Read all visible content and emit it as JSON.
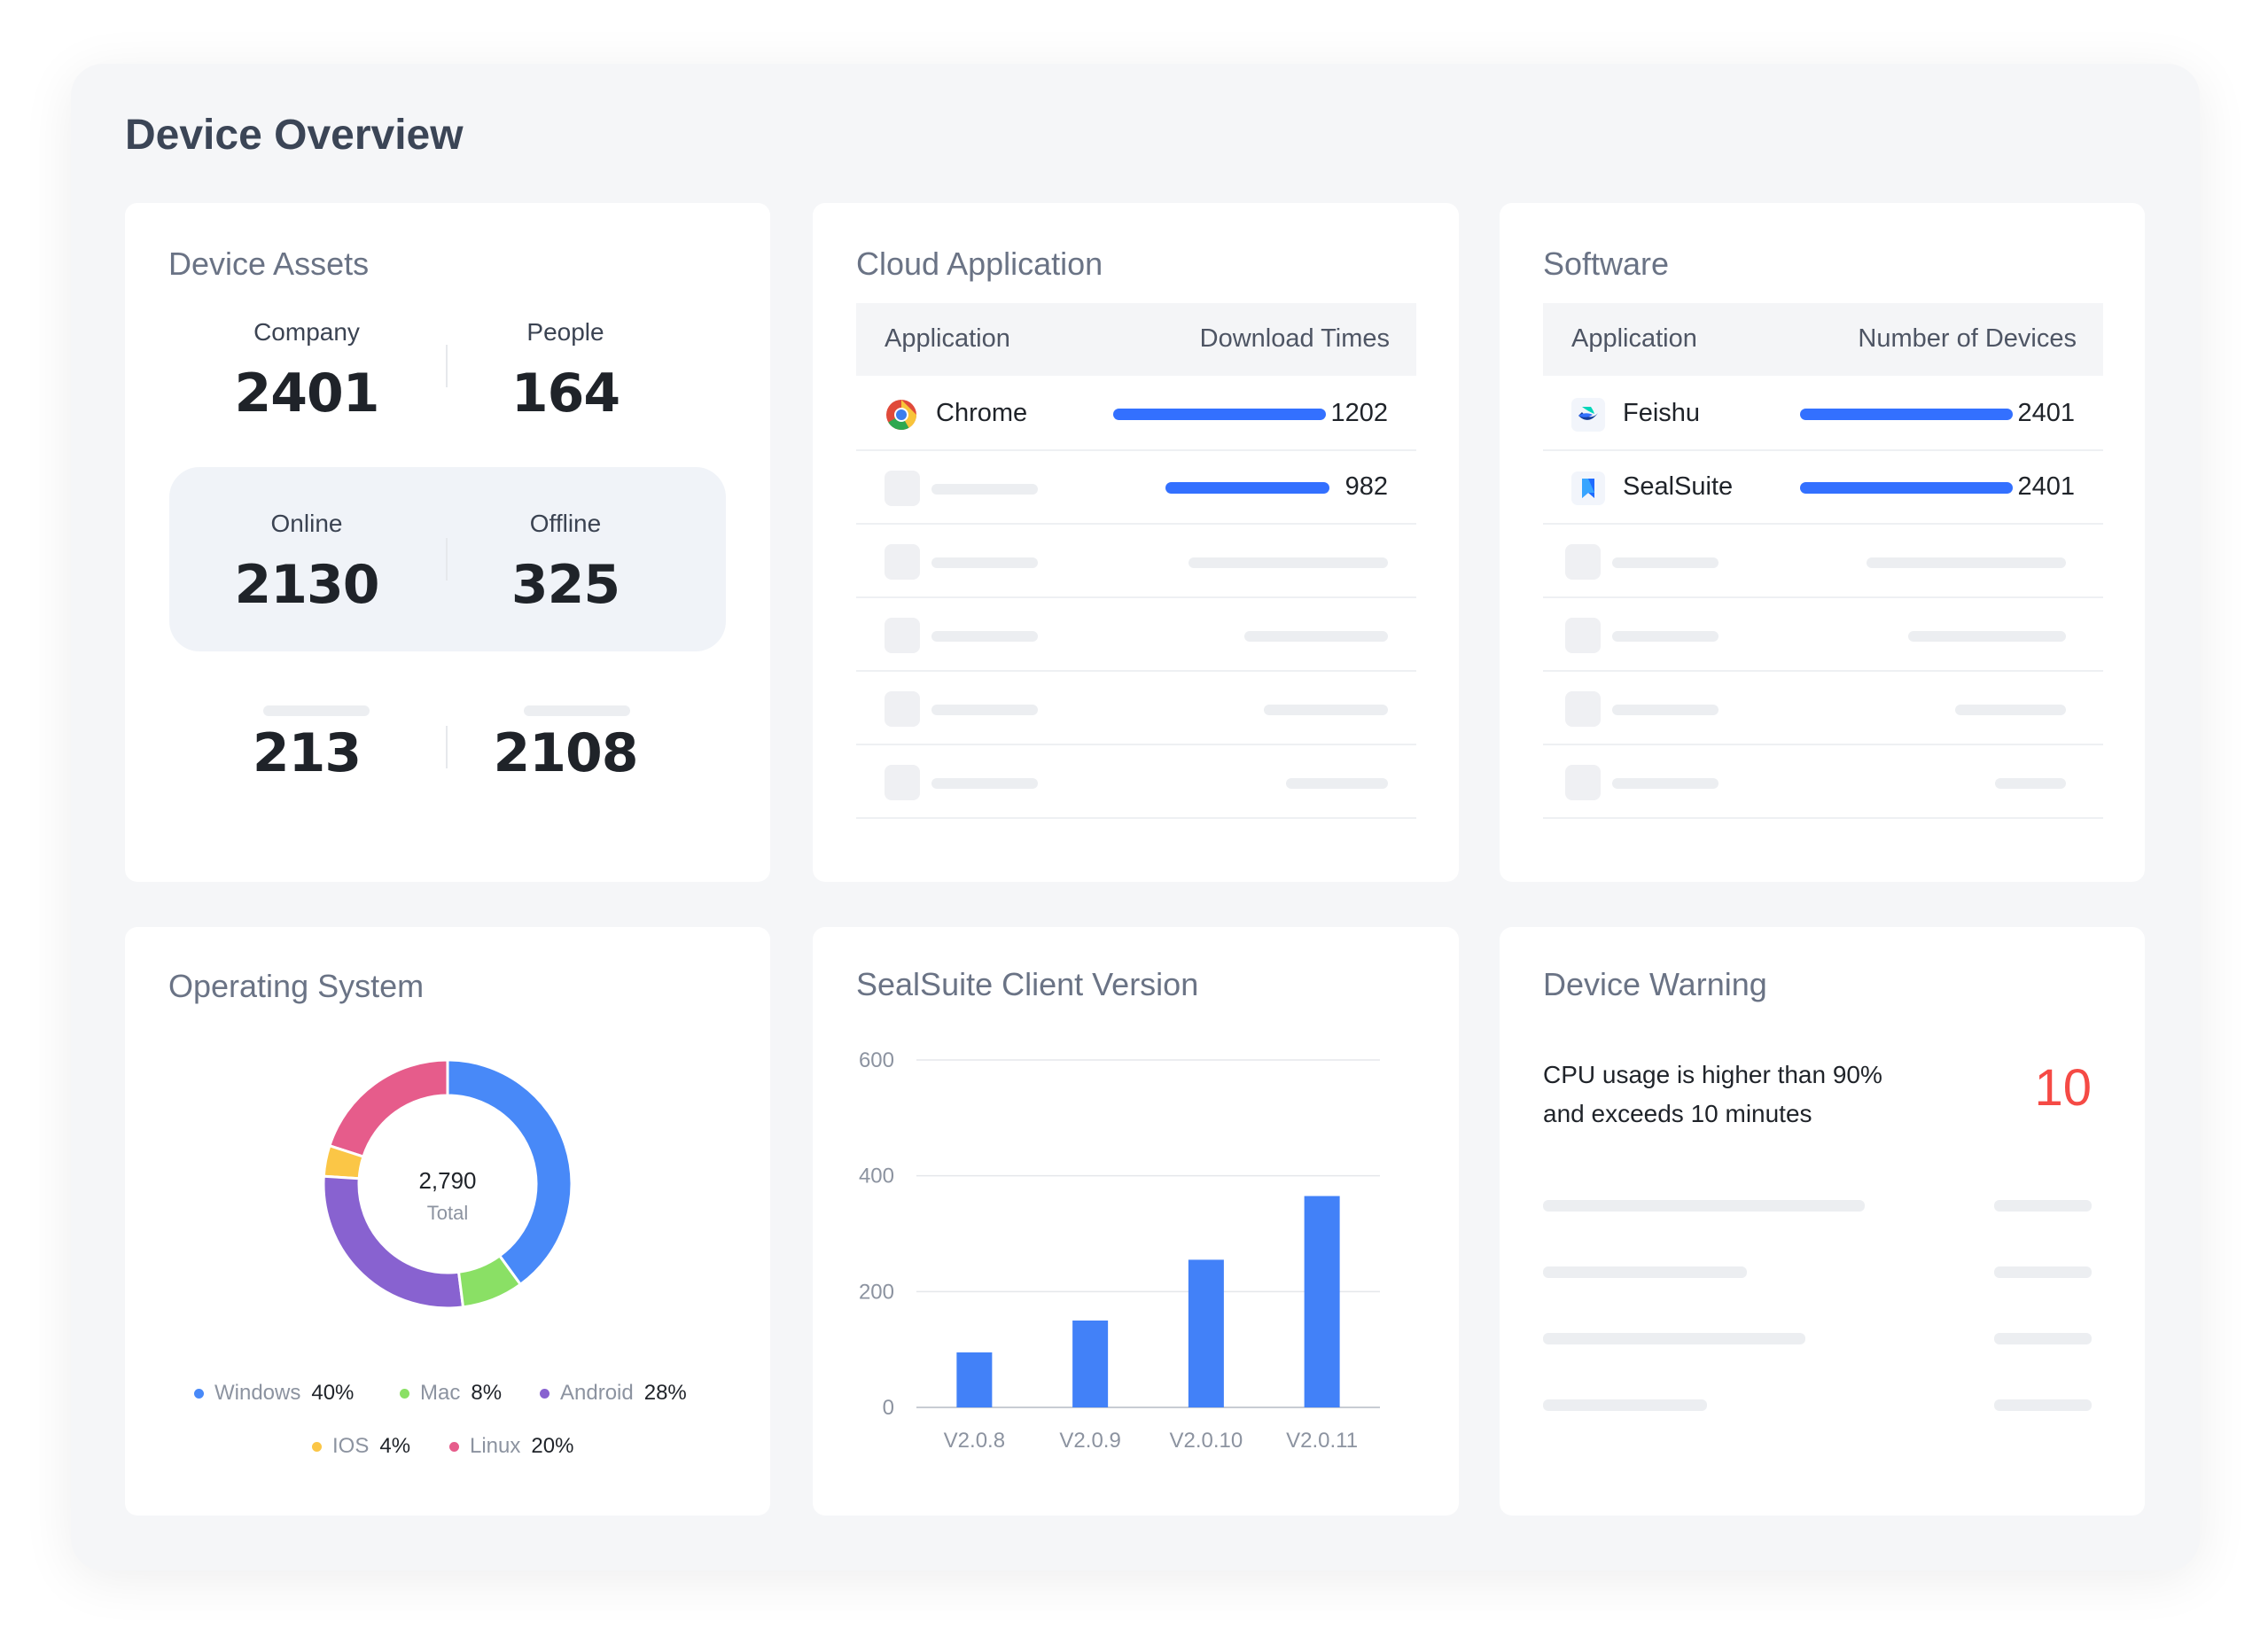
{
  "page_title": "Device Overview",
  "device_assets": {
    "title": "Device Assets",
    "company_label": "Company",
    "company_value": "2401",
    "people_label": "People",
    "people_value": "164",
    "online_label": "Online",
    "online_value": "2130",
    "offline_label": "Offline",
    "offline_value": "325",
    "extra_left_value": "213",
    "extra_right_value": "2108"
  },
  "cloud_application": {
    "title": "Cloud Application",
    "col_application": "Application",
    "col_download": "Download Times",
    "rows": [
      {
        "name": "Chrome",
        "value": "1202",
        "icon": "chrome-icon"
      },
      {
        "name": "",
        "value": "982",
        "icon": "placeholder-icon"
      }
    ]
  },
  "software": {
    "title": "Software",
    "col_application": "Application",
    "col_devices": "Number of Devices",
    "rows": [
      {
        "name": "Feishu",
        "value": "2401",
        "icon": "feishu-icon"
      },
      {
        "name": "SealSuite",
        "value": "2401",
        "icon": "sealsuite-icon"
      }
    ]
  },
  "operating_system": {
    "title": "Operating System",
    "total_value": "2,790",
    "total_label": "Total",
    "legend": [
      {
        "name": "Windows",
        "pct": "40%",
        "value": 40,
        "color": "#4889f8"
      },
      {
        "name": "Mac",
        "pct": "8%",
        "value": 8,
        "color": "#8ae065"
      },
      {
        "name": "Android",
        "pct": "28%",
        "value": 28,
        "color": "#8862d0"
      },
      {
        "name": "IOS",
        "pct": "4%",
        "value": 4,
        "color": "#fbc646"
      },
      {
        "name": "Linux",
        "pct": "20%",
        "value": 20,
        "color": "#e65c8b"
      }
    ]
  },
  "client_version": {
    "title": "SealSuite Client Version"
  },
  "chart_data": {
    "type": "bar",
    "title": "SealSuite Client Version",
    "categories": [
      "V2.0.8",
      "V2.0.9",
      "V2.0.10",
      "V2.0.11"
    ],
    "values": [
      95,
      150,
      255,
      365
    ],
    "ylim": [
      0,
      600
    ],
    "yticks": [
      0,
      200,
      400,
      600
    ],
    "grid": true,
    "color": "#4281f8"
  },
  "device_warning": {
    "title": "Device Warning",
    "line1": "CPU usage is higher than 90%",
    "line2": "and exceeds 10 minutes",
    "count": "10"
  }
}
